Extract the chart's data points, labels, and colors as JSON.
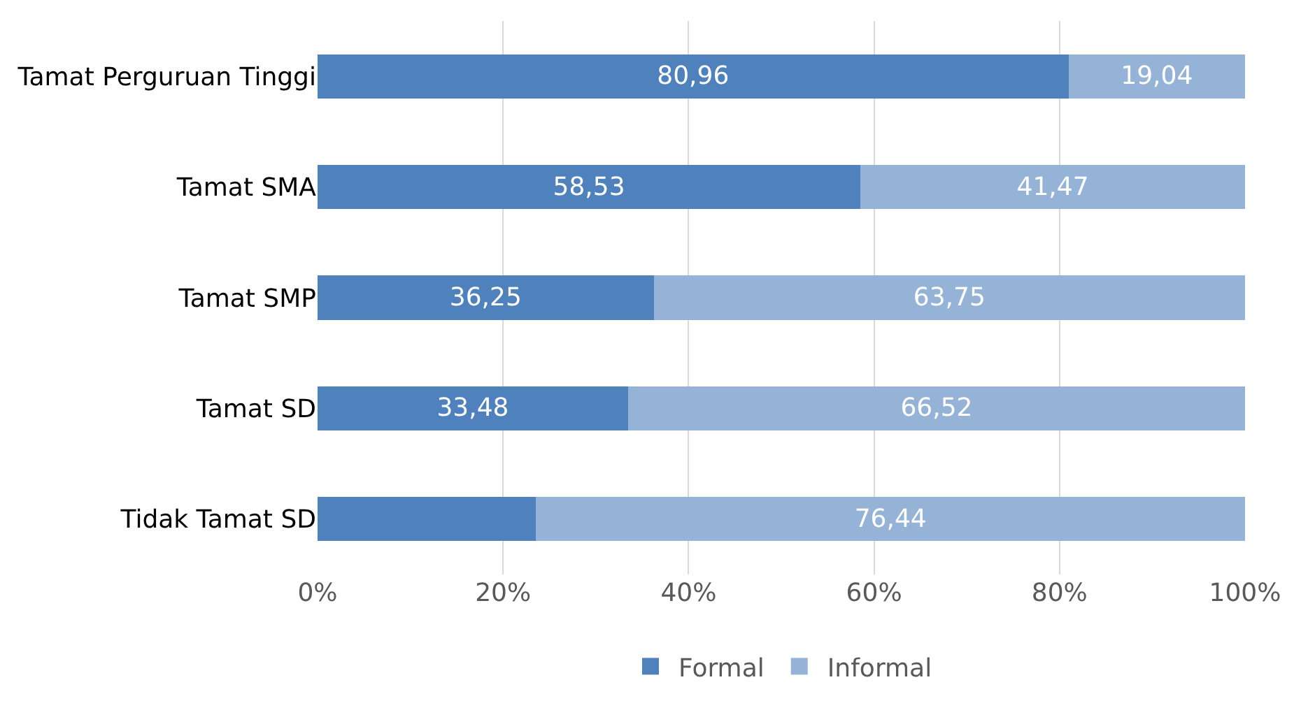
{
  "chart_data": {
    "type": "bar",
    "orientation": "horizontal",
    "stacked": true,
    "categories": [
      "Tamat Perguruan Tinggi",
      "Tamat SMA",
      "Tamat SMP",
      "Tamat SD",
      "Tidak Tamat SD"
    ],
    "series": [
      {
        "name": "Formal",
        "color": "#4f81bd",
        "values": [
          80.96,
          58.53,
          36.25,
          33.48,
          23.56
        ],
        "value_labels": [
          "80,96",
          "58,53",
          "36,25",
          "33,48",
          null
        ]
      },
      {
        "name": "Informal",
        "color": "#95b3d7",
        "values": [
          19.04,
          41.47,
          63.75,
          66.52,
          76.44
        ],
        "value_labels": [
          "19,04",
          "41,47",
          "63,75",
          "66,52",
          "76,44"
        ]
      }
    ],
    "xlim": [
      0,
      100
    ],
    "xticks": [
      {
        "value": 0,
        "label": "0%"
      },
      {
        "value": 20,
        "label": "20%"
      },
      {
        "value": 40,
        "label": "40%"
      },
      {
        "value": 60,
        "label": "60%"
      },
      {
        "value": 80,
        "label": "80%"
      },
      {
        "value": 100,
        "label": "100%"
      }
    ],
    "grid": "x",
    "legend": "bottom"
  }
}
